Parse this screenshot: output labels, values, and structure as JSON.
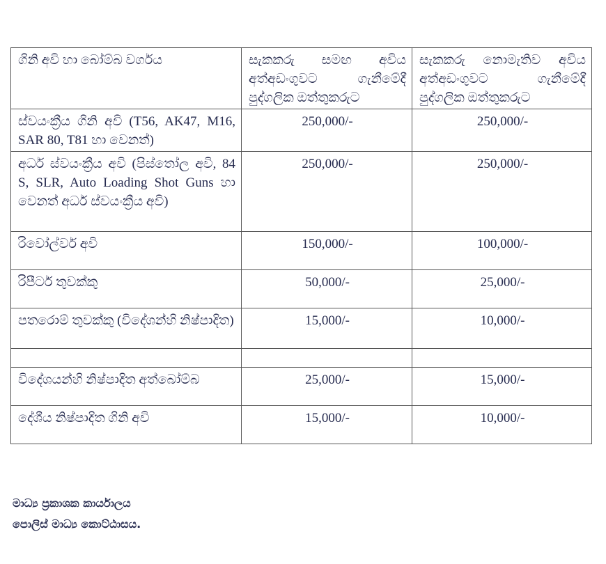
{
  "table": {
    "headers": [
      "ගිනි අවි හා බෝම්බ වර්ගය",
      "සැකකරු සමඟ අවිය අත්අඩංගුවට ගැනීමේදී පුද්ගලික ඔත්තුකරුට",
      "සැකකරු නොමැතිව අවිය අත්අඩංගුවට ගැනීමේදී පුද්ගලික ඔත්තුකරුට"
    ],
    "rows": [
      {
        "type": "ස්වයංක්‍රීය ගිනි අවි (T56, AK47, M16, SAR 80, T81 හා වෙනත්)",
        "with_suspect": "250,000/-",
        "without_suspect": "250,000/-"
      },
      {
        "type": "අර්ධ ස්වයංක්‍රීය අවි (පිස්තෝල අවි, 84 S, SLR, Auto Loading Shot Guns හා වෙනත් අර්ධ ස්වයංක්‍රීය අවි)",
        "with_suspect": "250,000/-",
        "without_suspect": "250,000/-"
      },
      {
        "type": "රිවෝල්වර් අවි",
        "with_suspect": "150,000/-",
        "without_suspect": "100,000/-"
      },
      {
        "type": "රිපීටර් තුවක්කු",
        "with_suspect": "50,000/-",
        "without_suspect": "25,000/-"
      },
      {
        "type": "පතරොම් තුවක්කු (විදේශන්හි නිෂ්පාදිත)",
        "with_suspect": "15,000/-",
        "without_suspect": "10,000/-"
      },
      {
        "type": "",
        "with_suspect": "",
        "without_suspect": ""
      },
      {
        "type": "විදේශයන්හි නිෂ්පාදිත අත්බෝම්බ",
        "with_suspect": "25,000/-",
        "without_suspect": "15,000/-"
      },
      {
        "type": "දේශීය නිෂ්පාදිත ගිනි අවි",
        "with_suspect": "15,000/-",
        "without_suspect": "10,000/-"
      }
    ]
  },
  "footer": {
    "line1": "මාධ්‍ය ප්‍රකාශක කාර්යාලය",
    "line2": "පොලිස් මාධ්‍ය කොට්ඨාසය."
  }
}
